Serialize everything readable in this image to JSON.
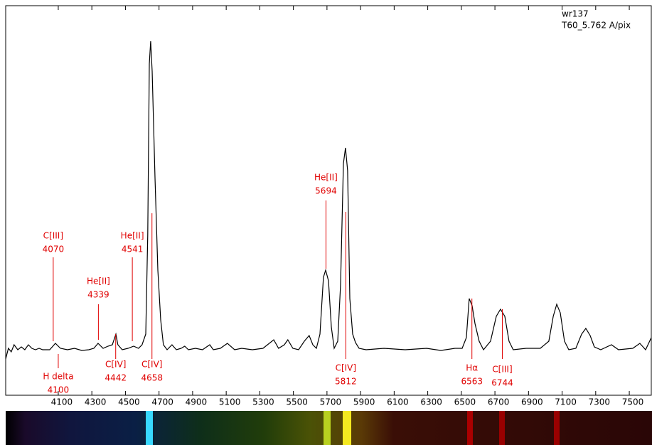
{
  "chart_data": {
    "type": "line",
    "object": "wr137",
    "setup": "T60_5.762 A/pix",
    "x": [
      3787,
      3803,
      3820,
      3837,
      3859,
      3880,
      3901,
      3922,
      3943,
      3964,
      3986,
      4007,
      4049,
      4083,
      4113,
      4155,
      4197,
      4240,
      4282,
      4312,
      4337,
      4367,
      4396,
      4422,
      4443,
      4455,
      4481,
      4515,
      4549,
      4578,
      4599,
      4621,
      4633,
      4642,
      4650,
      4659,
      4676,
      4693,
      4710,
      4726,
      4748,
      4777,
      4803,
      4832,
      4853,
      4875,
      4917,
      4959,
      5002,
      5023,
      5065,
      5107,
      5150,
      5192,
      5256,
      5319,
      5383,
      5412,
      5446,
      5467,
      5497,
      5531,
      5565,
      5594,
      5616,
      5637,
      5658,
      5679,
      5692,
      5709,
      5726,
      5743,
      5764,
      5781,
      5798,
      5810,
      5823,
      5836,
      5853,
      5870,
      5891,
      5933,
      6039,
      6166,
      6293,
      6378,
      6462,
      6505,
      6530,
      6547,
      6564,
      6581,
      6606,
      6632,
      6674,
      6708,
      6733,
      6759,
      6784,
      6809,
      6886,
      6970,
      7021,
      7047,
      7068,
      7089,
      7114,
      7140,
      7182,
      7216,
      7241,
      7267,
      7292,
      7330,
      7394,
      7436,
      7521,
      7563,
      7597,
      7631
    ],
    "series": [
      {
        "color": "#000000",
        "values": [
          48,
          63,
          58,
          68,
          61,
          65,
          61,
          68,
          63,
          61,
          63,
          61,
          61,
          70,
          63,
          61,
          63,
          60,
          61,
          63,
          70,
          63,
          66,
          68,
          83,
          68,
          61,
          63,
          66,
          63,
          68,
          83,
          223,
          463,
          495,
          453,
          303,
          173,
          103,
          68,
          61,
          68,
          61,
          63,
          66,
          61,
          63,
          61,
          68,
          61,
          63,
          70,
          61,
          63,
          61,
          63,
          75,
          63,
          68,
          75,
          63,
          61,
          73,
          81,
          68,
          63,
          83,
          163,
          173,
          158,
          93,
          63,
          73,
          153,
          323,
          345,
          313,
          133,
          83,
          71,
          63,
          61,
          63,
          61,
          63,
          60,
          63,
          63,
          78,
          133,
          123,
          98,
          73,
          61,
          73,
          108,
          118,
          108,
          73,
          61,
          63,
          63,
          73,
          108,
          125,
          113,
          73,
          61,
          63,
          83,
          91,
          81,
          65,
          61,
          68,
          61,
          63,
          70,
          61,
          78
        ]
      }
    ],
    "xlim": [
      3787,
      7631
    ],
    "ylim": [
      0,
      545
    ],
    "xticks": [
      4100,
      4300,
      4500,
      4700,
      4900,
      5100,
      5300,
      5500,
      5700,
      5900,
      6100,
      6300,
      6500,
      6700,
      6900,
      7100,
      7300,
      7500
    ],
    "annotation_color": "#e00000",
    "annotations": [
      {
        "name": "C[III]",
        "wavelength": 4070
      },
      {
        "name": "H delta",
        "wavelength": 4100
      },
      {
        "name": "He[II]",
        "wavelength": 4339
      },
      {
        "name": "C[IV]",
        "wavelength": 4442
      },
      {
        "name": "He[II]",
        "wavelength": 4541
      },
      {
        "name": "C[IV]",
        "wavelength": 4658
      },
      {
        "name": "He[II]",
        "wavelength": 5694
      },
      {
        "name": "C[IV]",
        "wavelength": 5812
      },
      {
        "name": "Hα",
        "wavelength": 6563
      },
      {
        "name": "C[III]",
        "wavelength": 6744
      }
    ]
  }
}
